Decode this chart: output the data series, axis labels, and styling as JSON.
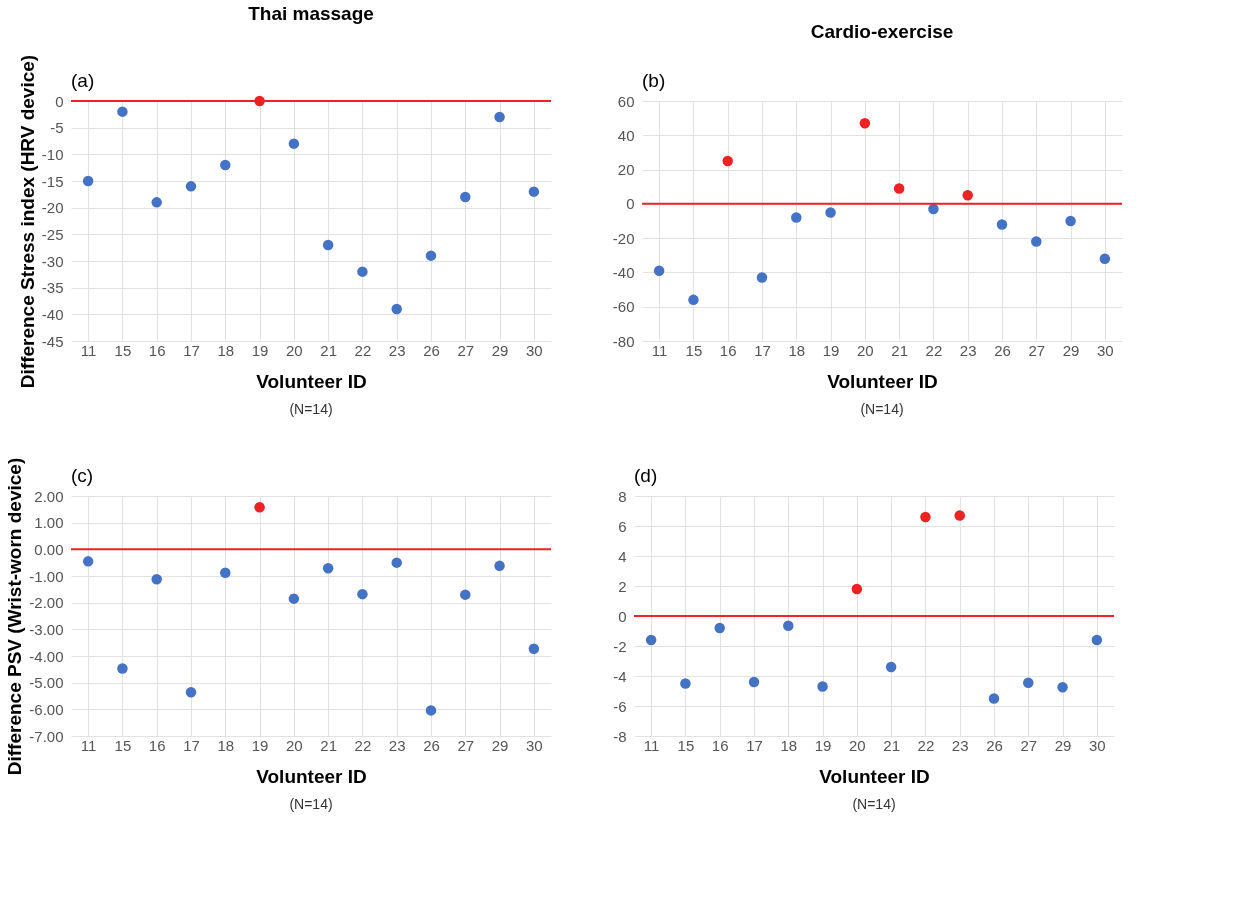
{
  "chart_data": [
    {
      "type": "scatter",
      "title": "Thai massage",
      "ylabel": "Difference Stress index (HRV device)",
      "xlabel": "Volunteer ID",
      "annotations": [
        "(a)",
        "(N=14)"
      ],
      "marker": "circle",
      "grid": true,
      "categories": [
        "11",
        "15",
        "16",
        "17",
        "18",
        "19",
        "20",
        "21",
        "22",
        "23",
        "26",
        "27",
        "29",
        "30"
      ],
      "values": [
        -15,
        -2,
        -19,
        -16,
        -12,
        0,
        -8,
        -27,
        -32,
        -39,
        -29,
        -18,
        -3,
        -17
      ],
      "colors": [
        "#4472c4",
        "#4472c4",
        "#4472c4",
        "#4472c4",
        "#4472c4",
        "#ee2222",
        "#4472c4",
        "#4472c4",
        "#4472c4",
        "#4472c4",
        "#4472c4",
        "#4472c4",
        "#4472c4",
        "#4472c4"
      ],
      "ylim": [
        -45,
        0
      ],
      "yticks": [
        -45,
        -40,
        -35,
        -30,
        -25,
        -20,
        -15,
        -10,
        -5,
        0
      ],
      "ref_lines": [
        {
          "axis": "y",
          "value": 0,
          "color": "#ee2222"
        }
      ]
    },
    {
      "type": "scatter",
      "title": "Cardio-exercise",
      "xlabel": "Volunteer ID",
      "annotations": [
        "(b)",
        "(N=14)"
      ],
      "marker": "circle",
      "grid": true,
      "categories": [
        "11",
        "15",
        "16",
        "17",
        "18",
        "19",
        "20",
        "21",
        "22",
        "23",
        "26",
        "27",
        "29",
        "30"
      ],
      "values": [
        -39,
        -56,
        25,
        -43,
        -8,
        -5,
        47,
        9,
        -3,
        5,
        -12,
        -22,
        -10,
        -32
      ],
      "colors": [
        "#4472c4",
        "#4472c4",
        "#ee2222",
        "#4472c4",
        "#4472c4",
        "#4472c4",
        "#ee2222",
        "#ee2222",
        "#4472c4",
        "#ee2222",
        "#4472c4",
        "#4472c4",
        "#4472c4",
        "#4472c4"
      ],
      "ylim": [
        -80,
        60
      ],
      "yticks": [
        -80,
        -60,
        -40,
        -20,
        0,
        20,
        40,
        60
      ],
      "ref_lines": [
        {
          "axis": "y",
          "value": 0,
          "color": "#ee2222"
        }
      ]
    },
    {
      "type": "scatter",
      "ylabel": "Difference PSV (Wrist-worn device)",
      "xlabel": "Volunteer ID",
      "annotations": [
        "(c)",
        "(N=14)"
      ],
      "marker": "circle",
      "grid": true,
      "categories": [
        "11",
        "15",
        "16",
        "17",
        "18",
        "19",
        "20",
        "21",
        "22",
        "23",
        "26",
        "27",
        "29",
        "30"
      ],
      "values": [
        -0.45,
        -4.47,
        -1.12,
        -5.36,
        -0.88,
        1.58,
        -1.85,
        -0.71,
        -1.68,
        -0.5,
        -6.04,
        -1.7,
        -0.62,
        -3.73
      ],
      "colors": [
        "#4472c4",
        "#4472c4",
        "#4472c4",
        "#4472c4",
        "#4472c4",
        "#ee2222",
        "#4472c4",
        "#4472c4",
        "#4472c4",
        "#4472c4",
        "#4472c4",
        "#4472c4",
        "#4472c4",
        "#4472c4"
      ],
      "ylim": [
        -7,
        2
      ],
      "yticks": [
        {
          "value": -7,
          "label": "-7.00"
        },
        {
          "value": -6,
          "label": "-6.00"
        },
        {
          "value": -5,
          "label": "-5.00"
        },
        {
          "value": -4,
          "label": "-4.00"
        },
        {
          "value": -3,
          "label": "-3.00"
        },
        {
          "value": -2,
          "label": "-2.00"
        },
        {
          "value": -1,
          "label": "-1.00"
        },
        {
          "value": 0,
          "label": "0.00"
        },
        {
          "value": 1,
          "label": "1.00"
        },
        {
          "value": 2,
          "label": "2.00"
        }
      ],
      "ref_lines": [
        {
          "axis": "y",
          "value": 0,
          "color": "#ee2222"
        }
      ]
    },
    {
      "type": "scatter",
      "xlabel": "Volunteer ID",
      "annotations": [
        "(d)",
        "(N=14)"
      ],
      "marker": "circle",
      "grid": true,
      "categories": [
        "11",
        "15",
        "16",
        "17",
        "18",
        "19",
        "20",
        "21",
        "22",
        "23",
        "26",
        "27",
        "29",
        "30"
      ],
      "values": [
        -1.6,
        -4.5,
        -0.8,
        -4.4,
        -0.65,
        -4.7,
        1.8,
        -3.4,
        6.6,
        6.7,
        -5.5,
        -4.45,
        -4.75,
        -1.6
      ],
      "colors": [
        "#4472c4",
        "#4472c4",
        "#4472c4",
        "#4472c4",
        "#4472c4",
        "#4472c4",
        "#ee2222",
        "#4472c4",
        "#ee2222",
        "#ee2222",
        "#4472c4",
        "#4472c4",
        "#4472c4",
        "#4472c4"
      ],
      "ylim": [
        -8,
        8
      ],
      "yticks": [
        -8,
        -6,
        -4,
        -2,
        0,
        2,
        4,
        6,
        8
      ],
      "ref_lines": [
        {
          "axis": "y",
          "value": 0,
          "color": "#ee2222"
        }
      ]
    }
  ]
}
